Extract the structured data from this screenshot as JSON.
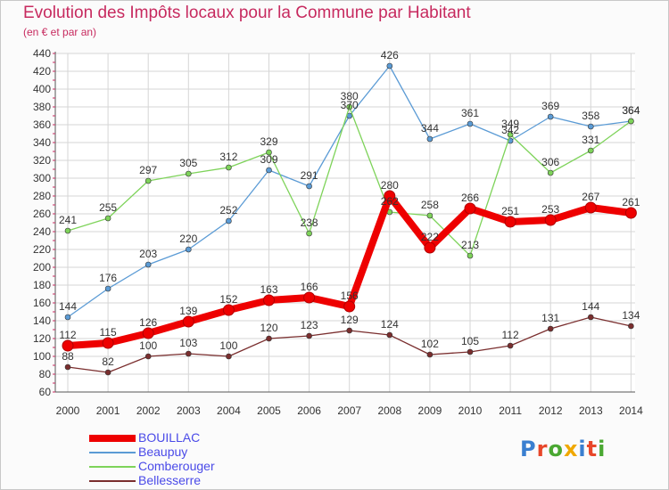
{
  "header": {
    "title": "Evolution des Impôts locaux pour la Commune par Habitant",
    "subtitle": "(en € et par an)"
  },
  "logo": {
    "text": "Proxiti",
    "colors": [
      "#3a7fd0",
      "#e8472a",
      "#4aa832",
      "#f0a800",
      "#3a7fd0",
      "#e8472a",
      "#4aa832"
    ]
  },
  "chart_data": {
    "type": "line",
    "x": [
      "2000",
      "2001",
      "2002",
      "2003",
      "2004",
      "2005",
      "2006",
      "2007",
      "2008",
      "2009",
      "2010",
      "2011",
      "2012",
      "2013",
      "2014"
    ],
    "ylim": [
      60,
      440
    ],
    "yticks": [
      60,
      80,
      100,
      120,
      140,
      160,
      180,
      200,
      220,
      240,
      260,
      280,
      300,
      320,
      340,
      360,
      380,
      400,
      420,
      440
    ],
    "grid": true,
    "legend_position": "bottom-left",
    "series": [
      {
        "name": "BOUILLAC",
        "color": "#ee0000",
        "values": [
          112,
          115,
          126,
          139,
          152,
          163,
          166,
          156,
          280,
          222,
          266,
          251,
          253,
          267,
          261
        ],
        "labels": [
          "112",
          "115",
          "126",
          "139",
          "152",
          "163",
          "166",
          "156",
          "280",
          "222",
          "266",
          "251",
          "253",
          "267",
          "261"
        ]
      },
      {
        "name": "Beaupuy",
        "color": "#5b9bd5",
        "values": [
          144,
          176,
          203,
          220,
          252,
          309,
          291,
          370,
          426,
          344,
          361,
          342,
          369,
          358,
          364
        ],
        "labels": [
          "144",
          "176",
          "203",
          "220",
          "252",
          "309",
          "291",
          "370",
          "426",
          "344",
          "361",
          "342",
          "369",
          "358",
          "364"
        ]
      },
      {
        "name": "Comberouger",
        "color": "#7ed35a",
        "values": [
          241,
          255,
          297,
          305,
          312,
          329,
          238,
          380,
          262,
          258,
          213,
          349,
          306,
          331,
          364
        ],
        "labels": [
          "241",
          "255",
          "297",
          "305",
          "312",
          "329",
          "238",
          "380",
          "262",
          "258",
          "213",
          "349",
          "306",
          "331",
          "364"
        ]
      },
      {
        "name": "Bellesserre",
        "color": "#7a2e2e",
        "values": [
          88,
          82,
          100,
          103,
          100,
          120,
          123,
          129,
          124,
          102,
          105,
          112,
          131,
          144,
          134
        ],
        "labels": [
          "88",
          "82",
          "100",
          "103",
          "100",
          "120",
          "123",
          "129",
          "124",
          "102",
          "105",
          "112",
          "131",
          "144",
          "134"
        ]
      }
    ]
  }
}
